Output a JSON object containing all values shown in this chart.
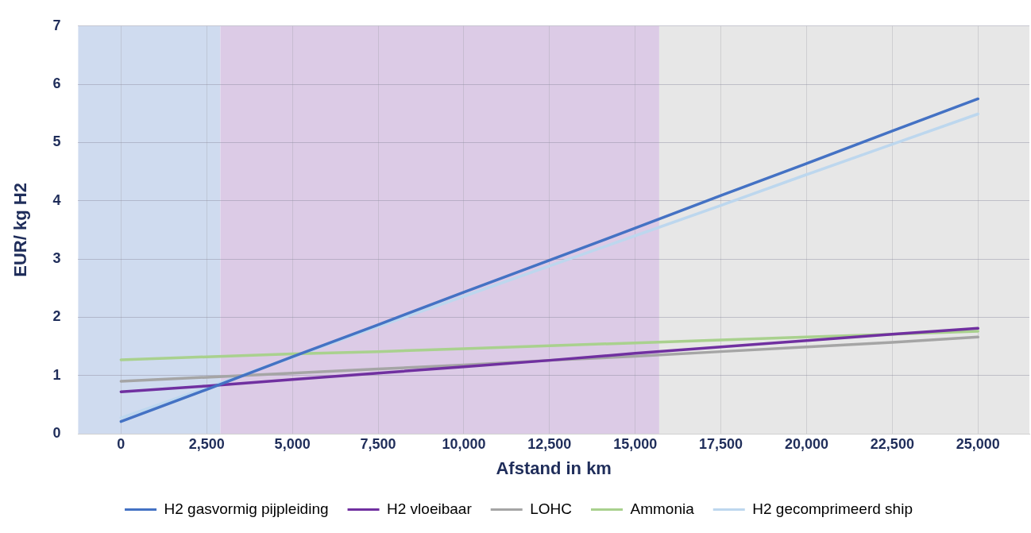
{
  "chart_data": {
    "type": "line",
    "xlabel": "Afstand in km",
    "ylabel": "EUR/ kg H2",
    "x": [
      0,
      2500,
      5000,
      7500,
      10000,
      12500,
      15000,
      17500,
      20000,
      22500,
      25000
    ],
    "xlim": [
      -1250,
      26500
    ],
    "xticks": [
      0,
      {
        "value": 2500,
        "label": "2,500"
      },
      {
        "value": 5000,
        "label": "5,000"
      },
      {
        "value": 7500,
        "label": "7,500"
      },
      {
        "value": 10000,
        "label": "10,000"
      },
      {
        "value": 12500,
        "label": "12,500"
      },
      {
        "value": 15000,
        "label": "15,000"
      },
      {
        "value": 17500,
        "label": "17,500"
      },
      {
        "value": 20000,
        "label": "20,000"
      },
      {
        "value": 22500,
        "label": "22,500"
      },
      {
        "value": 25000,
        "label": "25,000"
      }
    ],
    "ylim": [
      0,
      7
    ],
    "yticks": [
      0,
      1,
      2,
      3,
      4,
      5,
      6,
      7
    ],
    "grid": true,
    "legend": "bottom",
    "marker": "none",
    "line_style": "solid",
    "bands": [
      {
        "axis": "x",
        "from": -1250,
        "to": 2900,
        "color": "#cfdbef"
      },
      {
        "axis": "x",
        "from": 2900,
        "to": 15700,
        "color": "#dccbe6"
      },
      {
        "axis": "x",
        "from": 15700,
        "to": 26500,
        "color": "#e7e7e7"
      }
    ],
    "series": [
      {
        "name": "H2 gasvormig pijpleiding",
        "color": "#4472c4",
        "values": [
          0.21,
          0.76,
          1.32,
          1.87,
          2.43,
          2.98,
          3.53,
          4.09,
          4.64,
          5.2,
          5.75
        ]
      },
      {
        "name": "H2 vloeibaar",
        "color": "#7030a0",
        "values": [
          0.72,
          0.82,
          0.93,
          1.04,
          1.15,
          1.26,
          1.38,
          1.49,
          1.6,
          1.71,
          1.81
        ]
      },
      {
        "name": "LOHC",
        "color": "#a5a5a5",
        "values": [
          0.9,
          0.97,
          1.04,
          1.11,
          1.18,
          1.26,
          1.33,
          1.41,
          1.49,
          1.57,
          1.66
        ]
      },
      {
        "name": "Ammonia",
        "color": "#a9d18e",
        "values": [
          1.27,
          1.32,
          1.37,
          1.41,
          1.46,
          1.51,
          1.56,
          1.61,
          1.66,
          1.71,
          1.76
        ]
      },
      {
        "name": "H2 gecomprimeerd ship",
        "color": "#bdd7ee",
        "values": [
          0.27,
          0.79,
          1.31,
          1.84,
          2.36,
          2.88,
          3.4,
          3.92,
          4.45,
          4.97,
          5.49
        ]
      }
    ]
  }
}
